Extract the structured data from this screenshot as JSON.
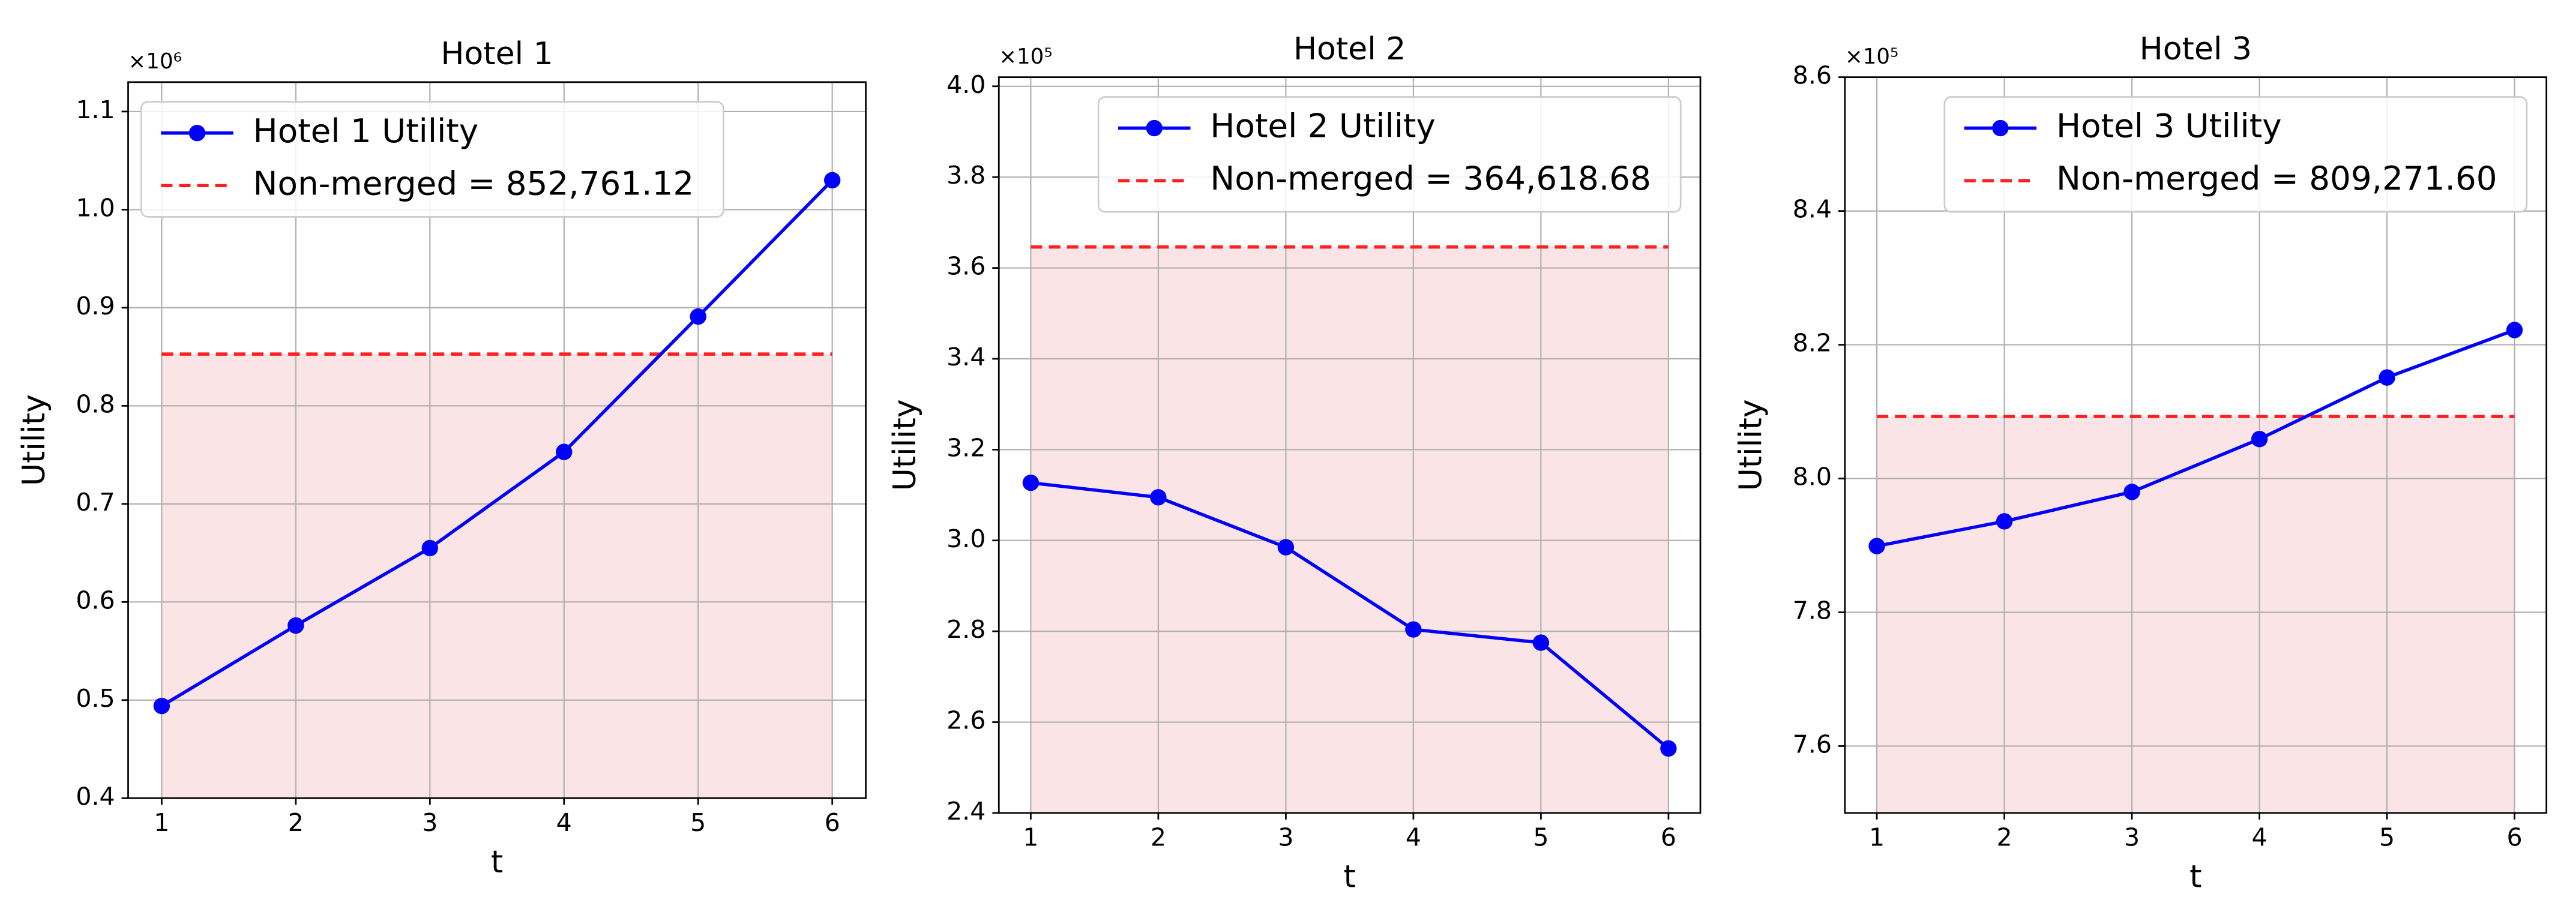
{
  "chart_data": [
    {
      "type": "line",
      "title": "Hotel 1",
      "xlabel": "t",
      "ylabel": "Utility",
      "y_offset_label": "×10⁶",
      "x": [
        1,
        2,
        3,
        4,
        5,
        6
      ],
      "xlim": [
        0.75,
        6.25
      ],
      "xticks": [
        1,
        2,
        3,
        4,
        5,
        6
      ],
      "ylim": [
        0.4,
        1.13
      ],
      "yticks": [
        0.4,
        0.5,
        0.6,
        0.7,
        0.8,
        0.9,
        {
          "value": 1,
          "label": "1.0"
        },
        1.1
      ],
      "series": [
        {
          "name": "Hotel 1 Utility",
          "color": "#0000ff",
          "values": [
            0.494,
            0.576,
            0.655,
            0.753,
            0.891,
            1.03
          ]
        }
      ],
      "reference_line": {
        "name": "Non-merged = 852,761.12",
        "value": 0.85276112,
        "color": "#ff2020"
      },
      "fill_color": "#fbe4e6",
      "grid": true,
      "legend": "upper left"
    },
    {
      "type": "line",
      "title": "Hotel 2",
      "xlabel": "t",
      "ylabel": "Utility",
      "y_offset_label": "×10⁵",
      "x": [
        1,
        2,
        3,
        4,
        5,
        6
      ],
      "xlim": [
        0.75,
        6.25
      ],
      "xticks": [
        1,
        2,
        3,
        4,
        5,
        6
      ],
      "ylim": [
        2.4,
        4.02
      ],
      "yticks": [
        2.4,
        2.6,
        2.8,
        {
          "value": 3,
          "label": "3.0"
        },
        3.2,
        3.4,
        3.6,
        3.8,
        {
          "value": 4,
          "label": "4.0"
        }
      ],
      "series": [
        {
          "name": "Hotel 2 Utility",
          "color": "#0000ff",
          "values": [
            3.127,
            3.095,
            2.985,
            2.804,
            2.775,
            2.542
          ]
        }
      ],
      "reference_line": {
        "name": "Non-merged = 364,618.68",
        "value": 3.6461868,
        "color": "#ff2020"
      },
      "fill_color": "#fbe4e6",
      "grid": true,
      "legend": "upper right"
    },
    {
      "type": "line",
      "title": "Hotel 3",
      "xlabel": "t",
      "ylabel": "Utility",
      "y_offset_label": "×10⁵",
      "x": [
        1,
        2,
        3,
        4,
        5,
        6
      ],
      "xlim": [
        0.75,
        6.25
      ],
      "xticks": [
        1,
        2,
        3,
        4,
        5,
        6
      ],
      "ylim": [
        7.5,
        8.6
      ],
      "yticks": [
        7.6,
        7.8,
        {
          "value": 8,
          "label": "8.0"
        },
        8.2,
        8.4,
        8.6
      ],
      "series": [
        {
          "name": "Hotel 3 Utility",
          "color": "#0000ff",
          "values": [
            7.899,
            7.936,
            7.98,
            8.059,
            8.151,
            8.222
          ]
        }
      ],
      "reference_line": {
        "name": "Non-merged = 809,271.60",
        "value": 8.092716,
        "color": "#ff2020"
      },
      "fill_color": "#fbe4e6",
      "grid": true,
      "legend": "upper right"
    }
  ]
}
